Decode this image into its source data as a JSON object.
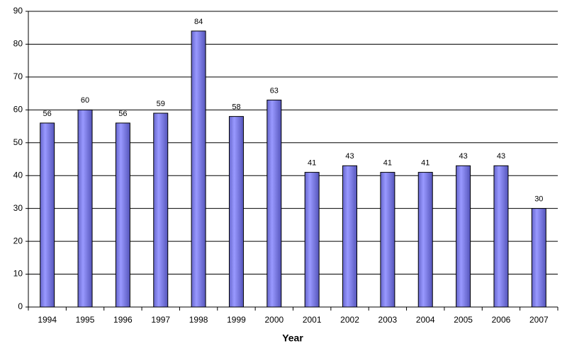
{
  "chart_data": {
    "type": "bar",
    "x_label": "Year",
    "categories": [
      "1994",
      "1995",
      "1996",
      "1997",
      "1998",
      "1999",
      "2000",
      "2001",
      "2002",
      "2003",
      "2004",
      "2005",
      "2006",
      "2007"
    ],
    "values": [
      56,
      60,
      56,
      59,
      84,
      58,
      63,
      41,
      43,
      41,
      41,
      43,
      43,
      30
    ],
    "color": "#9999ff",
    "ylim": [
      0,
      90
    ],
    "yticks": [
      0,
      10,
      20,
      30,
      40,
      50,
      60,
      70,
      80,
      90
    ],
    "grid": true
  }
}
